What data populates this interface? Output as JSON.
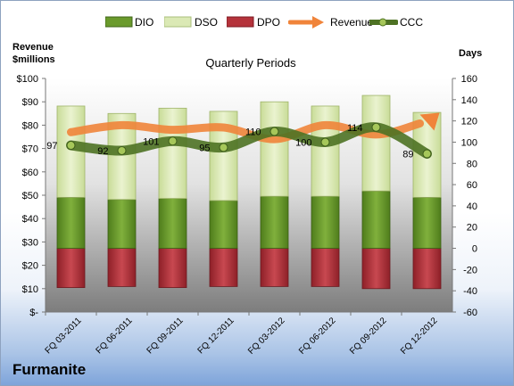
{
  "company": "Furmanite",
  "chart_data": {
    "type": "bar",
    "title": "Quarterly Periods",
    "left_axis_title": [
      "Revenue",
      "$millions"
    ],
    "right_axis_title": "Days",
    "categories": [
      "FQ 03-2011",
      "FQ 06-2011",
      "FQ 09-2011",
      "FQ 12-2011",
      "FQ 03-2012",
      "FQ 06-2012",
      "FQ 09-2012",
      "FQ 12-2012"
    ],
    "left_ticks": [
      "$-",
      "$10",
      "$20",
      "$30",
      "$40",
      "$50",
      "$60",
      "$70",
      "$80",
      "$90",
      "$100"
    ],
    "right_ticks": [
      "-60",
      "-40",
      "-20",
      "0",
      "20",
      "40",
      "60",
      "80",
      "100",
      "120",
      "140",
      "160"
    ],
    "left_range": [
      0,
      100
    ],
    "right_range": [
      -60,
      160
    ],
    "stacked_days": {
      "DPO": [
        -37,
        -36,
        -37,
        -36,
        -36,
        -36,
        -38,
        -38
      ],
      "DIO": [
        48,
        46,
        47,
        45,
        49,
        49,
        54,
        48
      ],
      "DSO": [
        86,
        81,
        85,
        84,
        89,
        85,
        90,
        80
      ]
    },
    "series": [
      {
        "name": "DIO",
        "color": "#6a9a2c"
      },
      {
        "name": "DSO",
        "color": "#dbe9b5"
      },
      {
        "name": "DPO",
        "color": "#b5333b"
      },
      {
        "name": "Revenue",
        "color": "#f0843a",
        "values": [
          77,
          80,
          78,
          79,
          74,
          80,
          76,
          83
        ]
      },
      {
        "name": "CCC",
        "color": "#4e7224",
        "values": [
          97,
          92,
          101,
          95,
          110,
          100,
          114,
          89
        ]
      }
    ],
    "ccc_labels": [
      "97",
      "92",
      "101",
      "95",
      "110",
      "100",
      "114",
      "89"
    ],
    "legend_position": "top",
    "grid": false
  }
}
